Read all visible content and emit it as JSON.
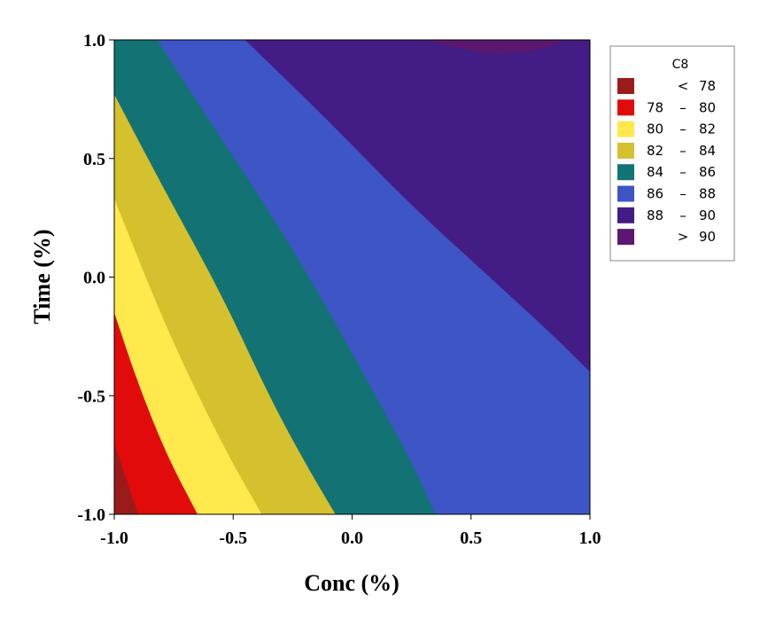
{
  "chart_data": {
    "type": "contour",
    "title": "",
    "xlabel": "Conc (%)",
    "ylabel": "Time (%)",
    "xlim": [
      -1.0,
      1.0
    ],
    "ylim": [
      -1.0,
      1.0
    ],
    "xticks": [
      "-1.0",
      "-0.5",
      "0.0",
      "0.5",
      "1.0"
    ],
    "yticks": [
      "-1.0",
      "-0.5",
      "0.0",
      "0.5",
      "1.0"
    ],
    "grid": false,
    "legend": {
      "title": "C8",
      "placement": "right",
      "entries": [
        {
          "lo": "",
          "sep": "<",
          "hi": "78",
          "color": "#9b1b1b"
        },
        {
          "lo": "78",
          "sep": "–",
          "hi": "80",
          "color": "#e10b0b"
        },
        {
          "lo": "80",
          "sep": "–",
          "hi": "82",
          "color": "#ffe94c"
        },
        {
          "lo": "82",
          "sep": "–",
          "hi": "84",
          "color": "#d5c02e"
        },
        {
          "lo": "84",
          "sep": "–",
          "hi": "86",
          "color": "#137374"
        },
        {
          "lo": "86",
          "sep": "–",
          "hi": "88",
          "color": "#3e55c6"
        },
        {
          "lo": "88",
          "sep": "–",
          "hi": "90",
          "color": "#431c86"
        },
        {
          "lo": "",
          "sep": ">",
          "hi": "90",
          "color": "#5c1870"
        }
      ]
    },
    "contours": [
      {
        "level": 78,
        "points": [
          [
            -1.0,
            -0.7
          ],
          [
            -0.9,
            -1.0
          ]
        ]
      },
      {
        "level": 80,
        "points": [
          [
            -1.0,
            -0.15
          ],
          [
            -0.9,
            -0.45
          ],
          [
            -0.78,
            -0.75
          ],
          [
            -0.65,
            -1.0
          ]
        ]
      },
      {
        "level": 82,
        "points": [
          [
            -1.0,
            0.33
          ],
          [
            -0.78,
            -0.22
          ],
          [
            -0.55,
            -0.7
          ],
          [
            -0.38,
            -1.0
          ]
        ]
      },
      {
        "level": 84,
        "points": [
          [
            -1.0,
            0.77
          ],
          [
            -0.78,
            0.35
          ],
          [
            -0.55,
            -0.07
          ],
          [
            -0.35,
            -0.5
          ],
          [
            -0.2,
            -0.78
          ],
          [
            -0.07,
            -1.0
          ]
        ]
      },
      {
        "level": 86,
        "points": [
          [
            -0.82,
            1.0
          ],
          [
            -0.6,
            0.66
          ],
          [
            -0.35,
            0.28
          ],
          [
            -0.15,
            -0.05
          ],
          [
            0.1,
            -0.5
          ],
          [
            0.25,
            -0.78
          ],
          [
            0.35,
            -1.0
          ]
        ]
      },
      {
        "level": 88,
        "points": [
          [
            -0.45,
            1.0
          ],
          [
            -0.1,
            0.66
          ],
          [
            0.25,
            0.3
          ],
          [
            0.6,
            -0.02
          ],
          [
            0.85,
            -0.25
          ],
          [
            1.0,
            -0.4
          ]
        ]
      },
      {
        "level": 90,
        "points": [
          [
            0.3,
            1.0
          ],
          [
            0.5,
            0.95
          ],
          [
            0.65,
            0.94
          ],
          [
            0.8,
            0.96
          ],
          [
            0.9,
            1.0
          ]
        ]
      }
    ]
  }
}
